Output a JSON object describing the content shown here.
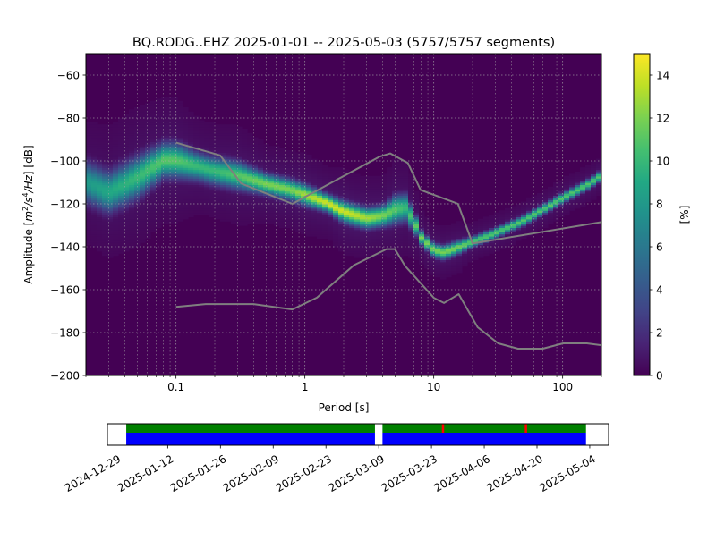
{
  "title": "BQ.RODG..EHZ   2025-01-01 -- 2025-05-03  (5757/5757 segments)",
  "chart_data": [
    {
      "type": "heatmap",
      "title": "BQ.RODG..EHZ   2025-01-01 -- 2025-05-03  (5757/5757 segments)",
      "xlabel": "Period [s]",
      "ylabel_parts": [
        "Amplitude [",
        "m",
        "2",
        "/s",
        "4",
        "/Hz",
        "] [dB]"
      ],
      "x_scale": "log",
      "xlim": [
        0.02,
        200
      ],
      "ylim": [
        -200,
        -50
      ],
      "x_ticks": [
        {
          "value": 0.1,
          "label": "0.1"
        },
        {
          "value": 1,
          "label": "1"
        },
        {
          "value": 10,
          "label": "10"
        },
        {
          "value": 100,
          "label": "100"
        }
      ],
      "y_ticks": [
        {
          "value": -60,
          "label": "−60"
        },
        {
          "value": -80,
          "label": "−80"
        },
        {
          "value": -100,
          "label": "−100"
        },
        {
          "value": -120,
          "label": "−120"
        },
        {
          "value": -140,
          "label": "−140"
        },
        {
          "value": -160,
          "label": "−160"
        },
        {
          "value": -180,
          "label": "−180"
        },
        {
          "value": -200,
          "label": "−200"
        }
      ],
      "grid": true,
      "background_color": "#440154",
      "colorbar": {
        "label": "[%]",
        "range": [
          0,
          15
        ],
        "ticks": [
          "0",
          "2",
          "4",
          "6",
          "8",
          "10",
          "12",
          "14"
        ],
        "colormap": "viridis"
      },
      "psd_mode_curve": {
        "periods": [
          0.02,
          0.03,
          0.05,
          0.08,
          0.1,
          0.15,
          0.2,
          0.3,
          0.5,
          0.8,
          1.0,
          1.5,
          2.0,
          3.0,
          4.0,
          5.0,
          6.0,
          7.0,
          8.0,
          10.0,
          12.0,
          15.0,
          20.0,
          30.0,
          50.0,
          80.0,
          120.0,
          160.0,
          200.0
        ],
        "db": [
          -110,
          -115,
          -108,
          -100,
          -100,
          -103,
          -105,
          -107,
          -111,
          -114,
          -116,
          -120,
          -124,
          -127,
          -126,
          -123,
          -122,
          -128,
          -136,
          -142,
          -143,
          -141,
          -138,
          -134,
          -128,
          -121,
          -115,
          -111,
          -107
        ],
        "peak_percent": [
          8,
          9,
          10,
          11,
          11,
          10,
          10,
          11,
          12,
          12,
          13,
          14,
          14,
          13,
          12,
          11,
          10,
          11,
          12,
          12,
          12,
          12,
          11,
          11,
          11,
          11,
          11,
          11,
          11
        ],
        "spread_db": [
          6,
          6,
          6,
          5,
          5,
          4,
          4,
          4,
          3,
          3,
          3,
          2.5,
          3,
          3,
          3,
          4,
          4,
          3,
          2,
          2,
          2,
          2,
          1.5,
          1.5,
          1.5,
          1.5,
          1.5,
          1.5,
          1.5
        ]
      },
      "noise_models": [
        {
          "name": "high",
          "color": "#7f7f7f",
          "periods": [
            0.1,
            0.22,
            0.32,
            0.8,
            3.8,
            4.6,
            6.3,
            7.9,
            15.4,
            20,
            354.8
          ],
          "db": [
            -91.5,
            -97.4,
            -110.5,
            -120,
            -98,
            -96.5,
            -101,
            -113.5,
            -120,
            -138.5,
            -126
          ]
        },
        {
          "name": "low",
          "color": "#7f7f7f",
          "periods": [
            0.1,
            0.17,
            0.4,
            0.8,
            1.24,
            2.4,
            4.3,
            5.0,
            6.0,
            10.0,
            12.0,
            15.6,
            21.9,
            31.6,
            45,
            70,
            101,
            154,
            328
          ],
          "db": [
            -168,
            -166.7,
            -166.7,
            -169.2,
            -163.7,
            -148.6,
            -141.1,
            -141.1,
            -149,
            -163.8,
            -166.2,
            -162.1,
            -177.5,
            -185,
            -187.5,
            -187.5,
            -185,
            -185,
            -187.5
          ]
        }
      ]
    },
    {
      "type": "timeline",
      "xlim": [
        "2024-12-27",
        "2025-05-09"
      ],
      "x_ticks": [
        "2024-12-29",
        "2025-01-12",
        "2025-01-26",
        "2025-02-09",
        "2025-02-23",
        "2025-03-09",
        "2025-03-23",
        "2025-04-06",
        "2025-04-20",
        "2025-05-04"
      ],
      "data_coverage": {
        "color": "#0000ff",
        "ranges": [
          [
            "2025-01-01",
            "2025-03-08"
          ],
          [
            "2025-03-10",
            "2025-05-03"
          ]
        ]
      },
      "psd_coverage": {
        "color": "#008000",
        "ranges": [
          [
            "2025-01-01",
            "2025-03-08"
          ],
          [
            "2025-03-10",
            "2025-05-03"
          ]
        ]
      },
      "marks": {
        "color": "#ff0000",
        "dates": [
          "2025-03-26",
          "2025-04-17"
        ]
      }
    }
  ]
}
